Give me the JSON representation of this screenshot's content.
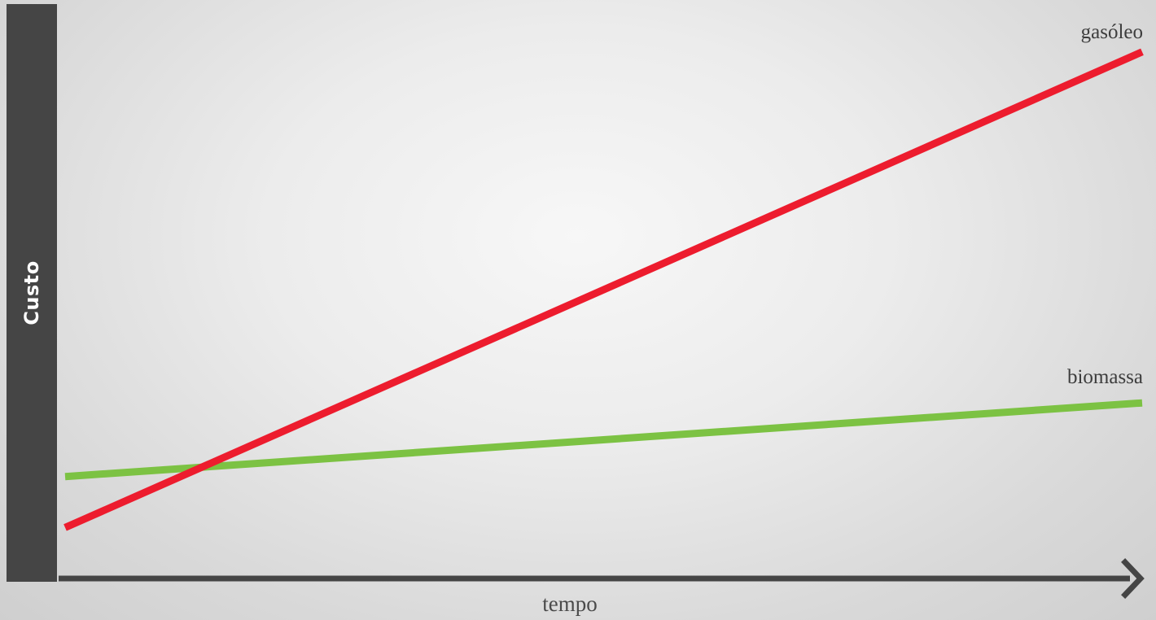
{
  "chart_data": {
    "type": "line",
    "xlabel": "tempo",
    "ylabel": "Custo",
    "x": [
      0,
      1
    ],
    "xlim": [
      0,
      1
    ],
    "ylim": [
      0,
      1
    ],
    "grid": false,
    "legend": "direct labels at right end of lines",
    "series": [
      {
        "name": "gasóleo",
        "color": "#ed1c2e",
        "values": [
          0.09,
          0.93
        ]
      },
      {
        "name": "biomassa",
        "color": "#7cc243",
        "values": [
          0.18,
          0.31
        ]
      }
    ],
    "axis_color": "#454545"
  }
}
